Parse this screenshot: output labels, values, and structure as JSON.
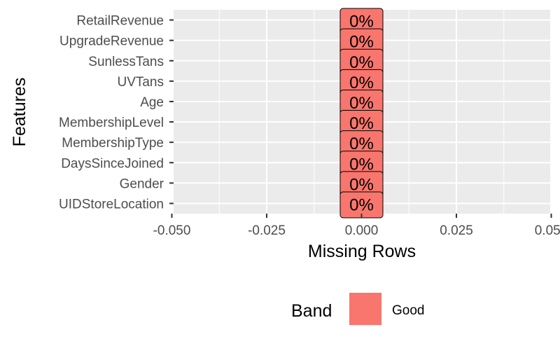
{
  "chart_data": {
    "type": "bar",
    "orientation": "horizontal",
    "categories": [
      "RetailRevenue",
      "UpgradeRevenue",
      "SunlessTans",
      "UVTans",
      "Age",
      "MembershipLevel",
      "MembershipType",
      "DaysSinceJoined",
      "Gender",
      "UIDStoreLocation"
    ],
    "values": [
      0,
      0,
      0,
      0,
      0,
      0,
      0,
      0,
      0,
      0
    ],
    "bands": [
      "Good",
      "Good",
      "Good",
      "Good",
      "Good",
      "Good",
      "Good",
      "Good",
      "Good",
      "Good"
    ],
    "data_labels": [
      "0%",
      "0%",
      "0%",
      "0%",
      "0%",
      "0%",
      "0%",
      "0%",
      "0%",
      "0%"
    ],
    "xlabel": "Missing Rows",
    "ylabel": "Features",
    "xlim": [
      -0.05,
      0.05
    ],
    "x_ticks": [
      -0.05,
      -0.025,
      0,
      0.025,
      0.05
    ],
    "x_tick_labels": [
      "-0.050",
      "-0.025",
      "0.000",
      "0.025",
      "0.050"
    ],
    "grid": true,
    "legend": {
      "title": "Band",
      "position": "bottom",
      "entries": [
        {
          "label": "Good",
          "color": "#F8766D"
        }
      ]
    },
    "colors": {
      "Good": "#F8766D",
      "panel": "#EBEBEB",
      "grid": "#FFFFFF"
    }
  }
}
